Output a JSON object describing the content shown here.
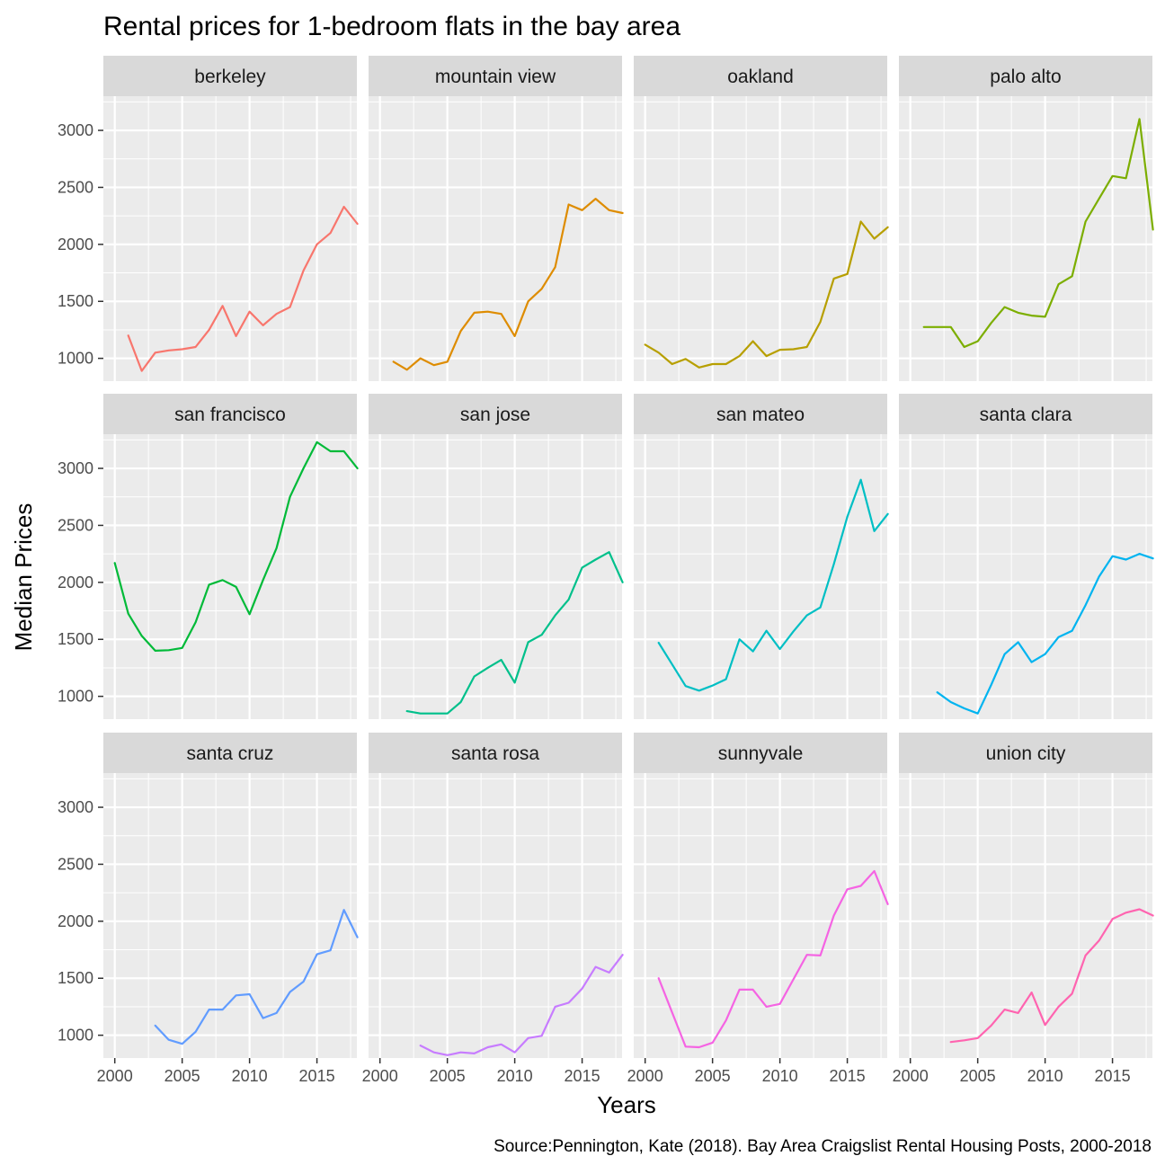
{
  "chart_data": {
    "type": "line",
    "title": "Rental prices for 1-bedroom flats in the bay area",
    "xlabel": "Years",
    "ylabel": "Median Prices",
    "caption": "Source:Pennington, Kate (2018). Bay Area Craigslist Rental Housing Posts, 2000-2018",
    "xlim": [
      2000,
      2018
    ],
    "ylim": [
      800,
      3300
    ],
    "x_ticks": [
      2000,
      2005,
      2010,
      2015
    ],
    "y_ticks": [
      1000,
      1500,
      2000,
      2500,
      3000
    ],
    "grid": true,
    "legend": "none",
    "facets": [
      {
        "name": "berkeley",
        "color": "#F8766D",
        "x": [
          2001,
          2002,
          2003,
          2004,
          2005,
          2006,
          2007,
          2008,
          2009,
          2010,
          2011,
          2012,
          2013,
          2014,
          2015,
          2016,
          2017,
          2018
        ],
        "y": [
          1200,
          890,
          1050,
          1070,
          1080,
          1100,
          1250,
          1460,
          1195,
          1410,
          1290,
          1390,
          1450,
          1770,
          2000,
          2100,
          2330,
          2180
        ]
      },
      {
        "name": "mountain view",
        "color": "#DE8C00",
        "x": [
          2001,
          2002,
          2003,
          2004,
          2005,
          2006,
          2007,
          2008,
          2009,
          2010,
          2011,
          2012,
          2013,
          2014,
          2015,
          2016,
          2017,
          2018
        ],
        "y": [
          970,
          900,
          1000,
          940,
          970,
          1240,
          1400,
          1410,
          1390,
          1195,
          1500,
          1610,
          1800,
          2350,
          2300,
          2400,
          2300,
          2275
        ]
      },
      {
        "name": "oakland",
        "color": "#B79F00",
        "x": [
          2000,
          2001,
          2002,
          2003,
          2004,
          2005,
          2006,
          2007,
          2008,
          2009,
          2010,
          2011,
          2012,
          2013,
          2014,
          2015,
          2016,
          2017,
          2018
        ],
        "y": [
          1120,
          1050,
          950,
          995,
          920,
          950,
          950,
          1020,
          1150,
          1020,
          1075,
          1080,
          1100,
          1320,
          1700,
          1740,
          2200,
          2050,
          2150
        ]
      },
      {
        "name": "palo alto",
        "color": "#7CAE00",
        "x": [
          2001,
          2002,
          2003,
          2004,
          2005,
          2006,
          2007,
          2008,
          2009,
          2010,
          2011,
          2012,
          2013,
          2014,
          2015,
          2016,
          2017,
          2018
        ],
        "y": [
          1275,
          1275,
          1275,
          1100,
          1150,
          1310,
          1450,
          1400,
          1375,
          1365,
          1650,
          1720,
          2200,
          2400,
          2600,
          2580,
          3100,
          2130
        ]
      },
      {
        "name": "san francisco",
        "color": "#00BA38",
        "x": [
          2000,
          2001,
          2002,
          2003,
          2004,
          2005,
          2006,
          2007,
          2008,
          2009,
          2010,
          2011,
          2012,
          2013,
          2014,
          2015,
          2016,
          2017,
          2018
        ],
        "y": [
          2170,
          1725,
          1530,
          1400,
          1405,
          1425,
          1650,
          1980,
          2020,
          1960,
          1720,
          2020,
          2300,
          2750,
          3000,
          3230,
          3150,
          3150,
          3000
        ]
      },
      {
        "name": "san jose",
        "color": "#00C08B",
        "x": [
          2002,
          2003,
          2004,
          2005,
          2006,
          2007,
          2008,
          2009,
          2010,
          2011,
          2012,
          2013,
          2014,
          2015,
          2016,
          2017,
          2018
        ],
        "y": [
          870,
          850,
          850,
          850,
          950,
          1175,
          1250,
          1320,
          1120,
          1475,
          1540,
          1710,
          1850,
          2130,
          2200,
          2265,
          2000
        ]
      },
      {
        "name": "san mateo",
        "color": "#00BFC4",
        "x": [
          2001,
          2002,
          2003,
          2004,
          2005,
          2006,
          2007,
          2008,
          2009,
          2010,
          2011,
          2012,
          2013,
          2014,
          2015,
          2016,
          2017,
          2018
        ],
        "y": [
          1470,
          1280,
          1090,
          1050,
          1095,
          1150,
          1500,
          1395,
          1575,
          1415,
          1570,
          1710,
          1780,
          2160,
          2575,
          2900,
          2450,
          2600
        ]
      },
      {
        "name": "santa clara",
        "color": "#00B4F0",
        "x": [
          2002,
          2003,
          2004,
          2005,
          2006,
          2007,
          2008,
          2009,
          2010,
          2011,
          2012,
          2013,
          2014,
          2015,
          2016,
          2017,
          2018
        ],
        "y": [
          1035,
          950,
          895,
          850,
          1100,
          1370,
          1475,
          1300,
          1370,
          1520,
          1575,
          1800,
          2050,
          2230,
          2200,
          2250,
          2210
        ]
      },
      {
        "name": "santa cruz",
        "color": "#619CFF",
        "x": [
          2003,
          2004,
          2005,
          2006,
          2007,
          2008,
          2009,
          2010,
          2011,
          2012,
          2013,
          2014,
          2015,
          2016,
          2017,
          2018
        ],
        "y": [
          1085,
          960,
          925,
          1030,
          1225,
          1225,
          1350,
          1360,
          1150,
          1195,
          1380,
          1470,
          1710,
          1745,
          2100,
          1860
        ]
      },
      {
        "name": "santa rosa",
        "color": "#C77CFF",
        "x": [
          2003,
          2004,
          2005,
          2006,
          2007,
          2008,
          2009,
          2010,
          2011,
          2012,
          2013,
          2014,
          2015,
          2016,
          2017,
          2018
        ],
        "y": [
          910,
          850,
          825,
          850,
          840,
          895,
          920,
          850,
          975,
          995,
          1250,
          1285,
          1410,
          1600,
          1550,
          1705
        ]
      },
      {
        "name": "sunnyvale",
        "color": "#F564E3",
        "x": [
          2001,
          2002,
          2003,
          2004,
          2005,
          2006,
          2007,
          2008,
          2009,
          2010,
          2011,
          2012,
          2013,
          2014,
          2015,
          2016,
          2017,
          2018
        ],
        "y": [
          1500,
          1200,
          900,
          895,
          935,
          1130,
          1400,
          1400,
          1250,
          1275,
          1490,
          1705,
          1700,
          2050,
          2280,
          2310,
          2440,
          2150
        ]
      },
      {
        "name": "union city",
        "color": "#FF64B0",
        "x": [
          2003,
          2004,
          2005,
          2006,
          2007,
          2008,
          2009,
          2010,
          2011,
          2012,
          2013,
          2014,
          2015,
          2016,
          2017,
          2018
        ],
        "y": [
          940,
          955,
          975,
          1085,
          1225,
          1195,
          1375,
          1090,
          1250,
          1365,
          1700,
          1830,
          2020,
          2075,
          2105,
          2050
        ]
      }
    ]
  }
}
